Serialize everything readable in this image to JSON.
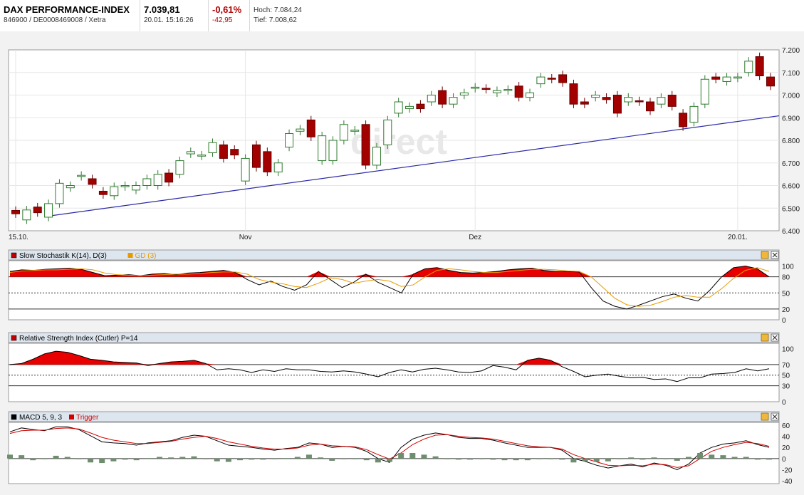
{
  "header": {
    "title": "DAX PERFORMANCE-INDEX",
    "id_line": "846900 / DE0008469008 / Xetra",
    "last_price": "7.039,81",
    "datetime": "20.01. 15:16:26",
    "change_pct": "-0,61%",
    "change_abs": "-42,95",
    "high": "Hoch: 7.084,24",
    "low": "Tief: 7.008,62"
  },
  "watermark": "direct",
  "chart_data": [
    {
      "type": "candlestick",
      "ylim": [
        6400,
        7200
      ],
      "y_ticks": [
        "7.200",
        "7.100",
        "7.000",
        "6.900",
        "6.800",
        "6.700",
        "6.600",
        "6.500",
        "6.400"
      ],
      "y_tick_values": [
        7200,
        7100,
        7000,
        6900,
        6800,
        6700,
        6600,
        6500,
        6400
      ],
      "x_labels": [
        "15.10.",
        "Nov",
        "Dez",
        "20.01."
      ],
      "x_label_index": [
        0,
        21,
        42,
        66
      ],
      "trendline": {
        "from": [
          3,
          6465
        ],
        "to": [
          67,
          6890
        ]
      },
      "candles": [
        [
          6490,
          6475
        ],
        [
          6448,
          6492
        ],
        [
          6505,
          6480
        ],
        [
          6460,
          6520
        ],
        [
          6520,
          6610
        ],
        [
          6590,
          6600
        ],
        [
          6640,
          6645
        ],
        [
          6630,
          6605
        ],
        [
          6575,
          6560
        ],
        [
          6555,
          6595
        ],
        [
          6595,
          6600
        ],
        [
          6580,
          6600
        ],
        [
          6600,
          6630
        ],
        [
          6600,
          6650
        ],
        [
          6655,
          6615
        ],
        [
          6650,
          6710
        ],
        [
          6740,
          6750
        ],
        [
          6730,
          6735
        ],
        [
          6745,
          6790
        ],
        [
          6780,
          6720
        ],
        [
          6760,
          6735
        ],
        [
          6620,
          6720
        ],
        [
          6780,
          6680
        ],
        [
          6750,
          6660
        ],
        [
          6660,
          6700
        ],
        [
          6770,
          6830
        ],
        [
          6840,
          6850
        ],
        [
          6890,
          6815
        ],
        [
          6710,
          6820
        ],
        [
          6710,
          6800
        ],
        [
          6800,
          6870
        ],
        [
          6840,
          6845
        ],
        [
          6870,
          6690
        ],
        [
          6690,
          6770
        ],
        [
          6780,
          6890
        ],
        [
          6920,
          6970
        ],
        [
          6940,
          6950
        ],
        [
          6960,
          6940
        ],
        [
          6970,
          7000
        ],
        [
          7020,
          6960
        ],
        [
          6960,
          6990
        ],
        [
          7000,
          7010
        ],
        [
          7030,
          7035
        ],
        [
          7030,
          7025
        ],
        [
          7010,
          7020
        ],
        [
          7020,
          7025
        ],
        [
          7040,
          6990
        ],
        [
          6990,
          7010
        ],
        [
          7050,
          7080
        ],
        [
          7075,
          7070
        ],
        [
          7090,
          7055
        ],
        [
          7050,
          6960
        ],
        [
          6970,
          6960
        ],
        [
          6990,
          7000
        ],
        [
          6990,
          6980
        ],
        [
          7000,
          6920
        ],
        [
          6970,
          6990
        ],
        [
          6975,
          6970
        ],
        [
          6970,
          6930
        ],
        [
          6960,
          6990
        ],
        [
          7000,
          6950
        ],
        [
          6920,
          6860
        ],
        [
          6880,
          6950
        ],
        [
          6960,
          7070
        ],
        [
          7080,
          7070
        ],
        [
          7060,
          7080
        ],
        [
          7075,
          7080
        ],
        [
          7100,
          7150
        ],
        [
          7170,
          7085
        ],
        [
          7080,
          7040
        ]
      ]
    },
    {
      "type": "line",
      "title": "Slow Stochastik K(14), D(3)",
      "legend": [
        "GD (3)"
      ],
      "ylim": [
        0,
        110
      ],
      "y_ticks": [
        "100",
        "80",
        "50",
        "20",
        "0"
      ],
      "y_tick_values": [
        100,
        80,
        50,
        20,
        0
      ],
      "series": [
        {
          "values": [
            90,
            93,
            92,
            94,
            95,
            96,
            94,
            88,
            82,
            83,
            84,
            82,
            85,
            86,
            84,
            87,
            88,
            90,
            92,
            88,
            75,
            65,
            72,
            62,
            55,
            65,
            90,
            75,
            60,
            70,
            85,
            70,
            60,
            50,
            85,
            95,
            97,
            92,
            88,
            87,
            88,
            90,
            93,
            95,
            96,
            92,
            90,
            90,
            89,
            60,
            35,
            25,
            20,
            27,
            35,
            43,
            48,
            40,
            35,
            55,
            80,
            97,
            100,
            95,
            80
          ]
        },
        {
          "values": [
            88,
            91,
            92,
            93,
            93,
            94,
            95,
            93,
            87,
            84,
            83,
            82,
            83,
            84,
            85,
            85,
            86,
            88,
            89,
            89,
            85,
            75,
            70,
            67,
            62,
            60,
            68,
            78,
            75,
            68,
            72,
            75,
            72,
            62,
            65,
            80,
            92,
            95,
            93,
            90,
            88,
            88,
            90,
            92,
            94,
            94,
            93,
            91,
            90,
            80,
            60,
            40,
            28,
            25,
            27,
            34,
            42,
            45,
            42,
            42,
            58,
            77,
            92,
            97,
            90
          ]
        }
      ]
    },
    {
      "type": "line",
      "title": "Relative Strength Index (Cutler) P=14",
      "ylim": [
        0,
        110
      ],
      "y_ticks": [
        "100",
        "70",
        "50",
        "30",
        "0"
      ],
      "y_tick_values": [
        100,
        70,
        50,
        30,
        0
      ],
      "series": [
        {
          "values": [
            70,
            72,
            80,
            90,
            95,
            93,
            87,
            80,
            78,
            75,
            74,
            73,
            68,
            72,
            75,
            76,
            78,
            72,
            60,
            62,
            60,
            55,
            60,
            57,
            62,
            60,
            60,
            57,
            56,
            58,
            56,
            52,
            47,
            55,
            60,
            56,
            61,
            63,
            60,
            56,
            55,
            58,
            68,
            65,
            60,
            78,
            82,
            78,
            66,
            57,
            47,
            50,
            52,
            48,
            45,
            46,
            42,
            43,
            38,
            45,
            45,
            52,
            53,
            55,
            62,
            58,
            62
          ]
        }
      ]
    },
    {
      "type": "line",
      "title": "MACD 5, 9, 3",
      "legend": [
        "Trigger"
      ],
      "ylim": [
        -45,
        65
      ],
      "y_ticks": [
        "60",
        "40",
        "20",
        "0",
        "-20",
        "-40"
      ],
      "y_tick_values": [
        60,
        40,
        20,
        0,
        -20,
        -40
      ],
      "series": [
        {
          "name": "MACD",
          "values": [
            48,
            55,
            52,
            50,
            57,
            57,
            52,
            41,
            30,
            28,
            27,
            24,
            28,
            30,
            32,
            38,
            42,
            40,
            32,
            24,
            22,
            20,
            17,
            15,
            18,
            20,
            28,
            26,
            20,
            22,
            20,
            13,
            0,
            -7,
            20,
            35,
            42,
            46,
            43,
            38,
            36,
            36,
            33,
            28,
            24,
            20,
            20,
            20,
            15,
            0,
            -5,
            -12,
            -17,
            -13,
            -10,
            -15,
            -8,
            -12,
            -20,
            -10,
            10,
            20,
            26,
            28,
            32,
            25,
            20
          ]
        },
        {
          "name": "Trigger",
          "values": [
            45,
            50,
            51,
            51,
            54,
            55,
            53,
            46,
            38,
            33,
            30,
            27,
            27,
            29,
            31,
            35,
            38,
            40,
            36,
            30,
            26,
            22,
            19,
            17,
            17,
            19,
            24,
            26,
            23,
            22,
            21,
            16,
            7,
            -1,
            10,
            25,
            35,
            42,
            43,
            40,
            38,
            37,
            35,
            31,
            27,
            23,
            21,
            20,
            17,
            7,
            0,
            -6,
            -12,
            -13,
            -12,
            -13,
            -10,
            -11,
            -16,
            -13,
            0,
            13,
            20,
            25,
            29,
            27,
            22
          ]
        },
        {
          "name": "Histogram",
          "values": [
            7,
            6,
            -3,
            -1,
            5,
            3,
            -1,
            -7,
            -8,
            -5,
            -2,
            -3,
            1,
            3,
            2,
            3,
            4,
            0,
            -5,
            -6,
            -3,
            -2,
            -2,
            -1,
            1,
            3,
            7,
            2,
            -4,
            0,
            -1,
            -3,
            -7,
            -6,
            10,
            10,
            7,
            4,
            0,
            -2,
            -2,
            -1,
            -2,
            -3,
            -3,
            -3,
            -1,
            0,
            -2,
            -7,
            -5,
            -6,
            -5,
            0,
            2,
            -2,
            2,
            -1,
            -4,
            3,
            10,
            7,
            6,
            3,
            3,
            -2,
            -2
          ]
        }
      ]
    }
  ]
}
